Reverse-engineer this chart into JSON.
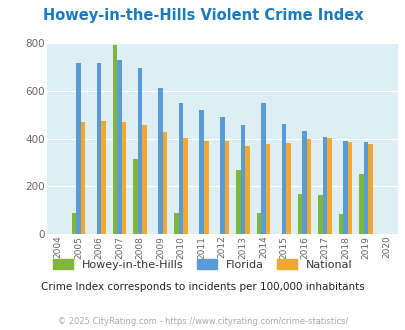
{
  "title": "Howey-in-the-Hills Violent Crime Index",
  "subtitle": "Crime Index corresponds to incidents per 100,000 inhabitants",
  "footer": "© 2025 CityRating.com - https://www.cityrating.com/crime-statistics/",
  "years": [
    2004,
    2005,
    2006,
    2007,
    2008,
    2009,
    2010,
    2011,
    2012,
    2013,
    2014,
    2015,
    2016,
    2017,
    2018,
    2019,
    2020
  ],
  "howey": [
    0,
    90,
    0,
    790,
    315,
    0,
    90,
    0,
    0,
    270,
    90,
    0,
    170,
    165,
    85,
    250,
    0
  ],
  "florida": [
    0,
    715,
    715,
    730,
    695,
    612,
    548,
    518,
    492,
    458,
    547,
    462,
    433,
    405,
    388,
    385,
    0
  ],
  "national": [
    0,
    468,
    473,
    468,
    455,
    428,
    402,
    388,
    388,
    367,
    376,
    383,
    399,
    403,
    386,
    379,
    0
  ],
  "howey_color": "#7db83a",
  "florida_color": "#5b9bd5",
  "national_color": "#f0a830",
  "plot_bg": "#ddeef5",
  "title_color": "#1a7abf",
  "subtitle_color": "#222222",
  "footer_color": "#aaaaaa",
  "ylim": [
    0,
    800
  ],
  "yticks": [
    0,
    200,
    400,
    600,
    800
  ],
  "bar_width": 0.22
}
